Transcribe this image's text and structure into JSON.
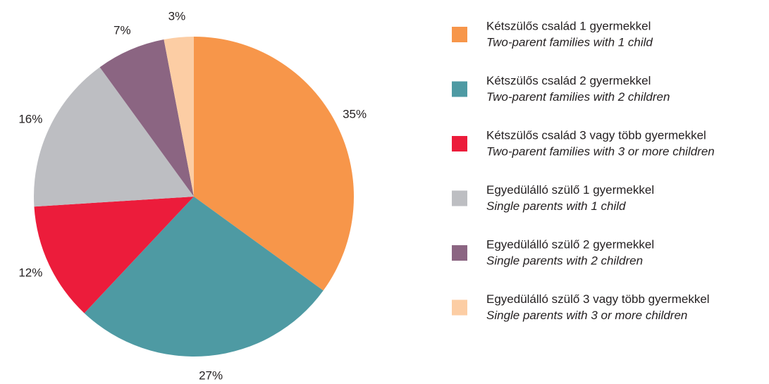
{
  "chart_data": {
    "type": "pie",
    "categories": [
      "Kétszülős család 1 gyermekkel",
      "Kétszülős család 2 gyermekkel",
      "Kétszülős család 3 vagy több gyermekkel",
      "Egyedülálló szülő 1 gyermekkel",
      "Egyedülálló szülő 2 gyermekkel",
      "Egyedülálló szülő 3 vagy több gyermekkel"
    ],
    "categories_en": [
      "Two-parent families with 1 child",
      "Two-parent families with 2 children",
      "Two-parent families with 3 or more children",
      "Single parents with 1 child",
      "Single parents with 2 children",
      "Single parents with 3 or more children"
    ],
    "values": [
      35,
      27,
      12,
      16,
      7,
      3
    ],
    "value_labels": [
      "35%",
      "27%",
      "12%",
      "16%",
      "7%",
      "3%"
    ],
    "colors": [
      "#f7964a",
      "#4e9aa3",
      "#ec1c3b",
      "#bdbec2",
      "#8b6582",
      "#fccda4"
    ],
    "legend": "right"
  }
}
